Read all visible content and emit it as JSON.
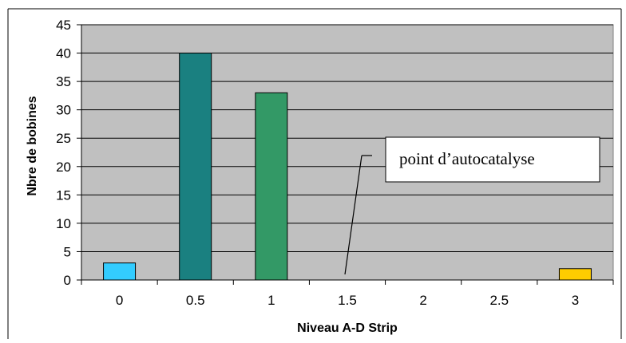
{
  "chart_data": {
    "type": "bar",
    "categories": [
      "0",
      "0.5",
      "1",
      "1.5",
      "2",
      "2.5",
      "3"
    ],
    "values": [
      3,
      40,
      33,
      0,
      0,
      0,
      2
    ],
    "bar_colors": [
      "#33ccff",
      "#1a8080",
      "#339966",
      "#000000",
      "#000000",
      "#000000",
      "#ffcc00"
    ],
    "xlabel": "Niveau A-D Strip",
    "ylabel": "Nbre de bobines",
    "ylim": [
      0,
      45
    ],
    "yticks": [
      "0",
      "5",
      "10",
      "15",
      "20",
      "25",
      "30",
      "35",
      "40",
      "45"
    ],
    "grid": true,
    "plot_background": "#c0c0c0",
    "annotation": {
      "text": "point d’autocatalyse",
      "target_category": "1.5"
    }
  }
}
